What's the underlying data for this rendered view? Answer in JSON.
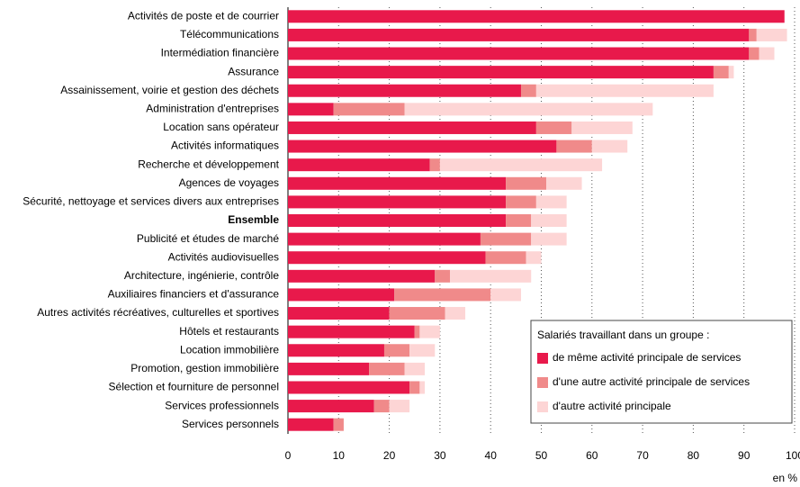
{
  "chart_data": {
    "type": "bar",
    "stacked": true,
    "grid": true,
    "categories": [
      "Activités de poste et de courrier",
      "Télécommunications",
      "Intermédiation financière",
      "Assurance",
      "Assainissement, voirie et gestion des déchets",
      "Administration d'entreprises",
      "Location sans opérateur",
      "Activités informatiques",
      "Recherche et développement",
      "Agences de voyages",
      "Sécurité, nettoyage et services divers aux entreprises",
      "Ensemble",
      "Publicité et études de marché",
      "Activités audiovisuelles",
      "Architecture, ingénierie, contrôle",
      "Auxiliaires financiers et d'assurance",
      "Autres activités récréatives, culturelles et sportives",
      "Hôtels et restaurants",
      "Location immobilière",
      "Promotion, gestion immobilière",
      "Sélection et fourniture de personnel",
      "Services professionnels",
      "Services personnels"
    ],
    "legend_title": "Salariés travaillant dans un groupe :",
    "series": [
      {
        "name": "de même activité principale de services",
        "color": "#e8194b",
        "values": [
          98,
          91,
          91,
          84,
          46,
          9,
          49,
          53,
          28,
          43,
          43,
          43,
          38,
          39,
          29,
          21,
          20,
          25,
          19,
          16,
          24,
          17,
          9
        ]
      },
      {
        "name": "d'une autre activité principale de services",
        "color": "#f08a8a",
        "values": [
          0,
          1.5,
          2,
          3,
          3,
          14,
          7,
          7,
          2,
          8,
          6,
          5,
          10,
          8,
          3,
          19,
          11,
          1,
          5,
          7,
          2,
          3,
          2
        ]
      },
      {
        "name": "d'autre activité principale",
        "color": "#fdd5d5",
        "values": [
          0,
          6,
          3,
          1,
          35,
          49,
          12,
          7,
          32,
          7,
          6,
          7,
          7,
          3,
          16,
          6,
          4,
          4,
          5,
          4,
          1,
          4,
          0
        ]
      }
    ],
    "xlim": [
      0,
      100
    ],
    "xticks": [
      0,
      10,
      20,
      30,
      40,
      50,
      60,
      70,
      80,
      90,
      100
    ],
    "xlabel": "en %"
  }
}
